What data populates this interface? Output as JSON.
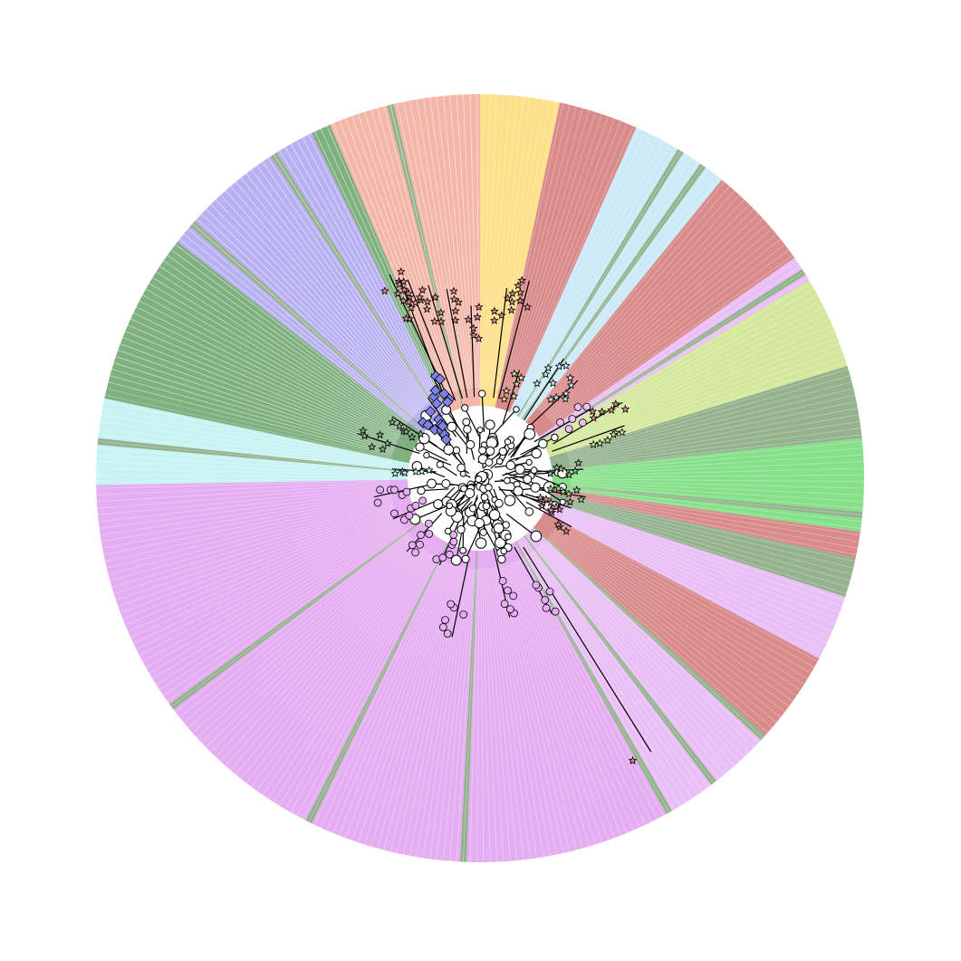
{
  "figure": {
    "kind": "radial phylogenetic tree with colored clade sectors",
    "center_fill": "#ffffff",
    "colors": {
      "salmon": "#f4b6a8",
      "yellow": "#fde08a",
      "darkred": "#d98a8a",
      "lightblue": "#cbe9f7",
      "lavender": "#e9bff5",
      "lime": "#d4e89d",
      "grayolive": "#93b28d",
      "green": "#86e08a",
      "pink": "#e6aef2",
      "violet": "#b9b0f2",
      "teal": "#c8f3f3",
      "forest": "#7fb07f"
    },
    "sectors": [
      {
        "color": "salmon",
        "start_deg": -76,
        "end_deg": -21
      },
      {
        "color": "grayolive",
        "start_deg": -21,
        "end_deg": -20
      },
      {
        "color": "yellow",
        "start_deg": -20,
        "end_deg": -18
      },
      {
        "color": "grayolive",
        "start_deg": -18,
        "end_deg": -17
      },
      {
        "color": "yellow",
        "start_deg": -17,
        "end_deg": 12
      },
      {
        "color": "darkred",
        "start_deg": 12,
        "end_deg": 24
      },
      {
        "color": "lightblue",
        "start_deg": 24,
        "end_deg": 31
      },
      {
        "color": "grayolive",
        "start_deg": 31,
        "end_deg": 32
      },
      {
        "color": "lightblue",
        "start_deg": 32,
        "end_deg": 35
      },
      {
        "color": "grayolive",
        "start_deg": 35,
        "end_deg": 36
      },
      {
        "color": "lightblue",
        "start_deg": 36,
        "end_deg": 39
      },
      {
        "color": "darkred",
        "start_deg": 39,
        "end_deg": 55
      },
      {
        "color": "lavender",
        "start_deg": 55,
        "end_deg": 57
      },
      {
        "color": "grayolive",
        "start_deg": 57,
        "end_deg": 58
      },
      {
        "color": "lavender",
        "start_deg": 58,
        "end_deg": 59
      },
      {
        "color": "lime",
        "start_deg": 59,
        "end_deg": 73
      },
      {
        "color": "grayolive",
        "start_deg": 73,
        "end_deg": 84
      },
      {
        "color": "green",
        "start_deg": 84,
        "end_deg": 95
      },
      {
        "color": "grayolive",
        "start_deg": 95,
        "end_deg": 96
      },
      {
        "color": "green",
        "start_deg": 96,
        "end_deg": 98
      },
      {
        "color": "darkred",
        "start_deg": 98,
        "end_deg": 102
      },
      {
        "color": "grayolive",
        "start_deg": 102,
        "end_deg": 108
      },
      {
        "color": "lavender",
        "start_deg": 108,
        "end_deg": 118
      },
      {
        "color": "darkred",
        "start_deg": 118,
        "end_deg": 132
      },
      {
        "color": "grayolive",
        "start_deg": 132,
        "end_deg": 133
      },
      {
        "color": "lavender",
        "start_deg": 133,
        "end_deg": 142
      },
      {
        "color": "grayolive",
        "start_deg": 142,
        "end_deg": 143
      },
      {
        "color": "lavender",
        "start_deg": 143,
        "end_deg": 150
      },
      {
        "color": "grayolive",
        "start_deg": 150,
        "end_deg": 151
      },
      {
        "color": "pink",
        "start_deg": 151,
        "end_deg": 182
      },
      {
        "color": "grayolive",
        "start_deg": 182,
        "end_deg": 183
      },
      {
        "color": "pink",
        "start_deg": 183,
        "end_deg": 206
      },
      {
        "color": "grayolive",
        "start_deg": 206,
        "end_deg": 207
      },
      {
        "color": "pink",
        "start_deg": 207,
        "end_deg": 233
      },
      {
        "color": "grayolive",
        "start_deg": 233,
        "end_deg": 234
      },
      {
        "color": "pink",
        "start_deg": 234,
        "end_deg": 269
      },
      {
        "color": "teal",
        "start_deg": 269,
        "end_deg": 275
      },
      {
        "color": "grayolive",
        "start_deg": 275,
        "end_deg": 276
      },
      {
        "color": "teal",
        "start_deg": 276,
        "end_deg": 282
      },
      {
        "color": "forest",
        "start_deg": 282,
        "end_deg": 308
      },
      {
        "color": "violet",
        "start_deg": 308,
        "end_deg": 311
      },
      {
        "color": "grayolive",
        "start_deg": 311,
        "end_deg": 312
      },
      {
        "color": "violet",
        "start_deg": 312,
        "end_deg": 327
      },
      {
        "color": "grayolive",
        "start_deg": 327,
        "end_deg": 328
      },
      {
        "color": "violet",
        "start_deg": 328,
        "end_deg": 334
      },
      {
        "color": "forest",
        "start_deg": 334,
        "end_deg": 337
      },
      {
        "color": "salmon",
        "start_deg": 337,
        "end_deg": 346
      },
      {
        "color": "grayolive",
        "start_deg": 346,
        "end_deg": 347
      },
      {
        "color": "salmon",
        "start_deg": 347,
        "end_deg": 360
      }
    ],
    "leaves": [
      {
        "angle": -24,
        "r": 0.58,
        "shape": "star",
        "color": "#d98a8a"
      },
      {
        "angle": -20,
        "r": 0.55,
        "shape": "star",
        "color": "#d98a8a"
      },
      {
        "angle": -3,
        "r": 0.45,
        "shape": "star",
        "color": "#d98a8a"
      },
      {
        "angle": 8,
        "r": 0.5,
        "shape": "star",
        "color": "#d98a8a"
      },
      {
        "angle": 14,
        "r": 0.53,
        "shape": "star",
        "color": "#d98a8a"
      },
      {
        "angle": 338,
        "r": 0.55,
        "shape": "star",
        "color": "#d98a8a"
      },
      {
        "angle": 345,
        "r": 0.52,
        "shape": "star",
        "color": "#d98a8a"
      },
      {
        "angle": 350,
        "r": 0.5,
        "shape": "star",
        "color": "#d98a8a"
      },
      {
        "angle": 20,
        "r": 0.3,
        "shape": "star",
        "color": "#d4e89d"
      },
      {
        "angle": 35,
        "r": 0.38,
        "shape": "star",
        "color": "#cbe9f7"
      },
      {
        "angle": 45,
        "r": 0.36,
        "shape": "star",
        "color": "#cbe9f7"
      },
      {
        "angle": 58,
        "r": 0.34,
        "shape": "circle",
        "color": "#e9bff5"
      },
      {
        "angle": 62,
        "r": 0.42,
        "shape": "star",
        "color": "#d98a8a"
      },
      {
        "angle": 70,
        "r": 0.4,
        "shape": "star",
        "color": "#d4e89d"
      },
      {
        "angle": 85,
        "r": 0.27,
        "shape": "star",
        "color": "#93b28d"
      },
      {
        "angle": 100,
        "r": 0.28,
        "shape": "star",
        "color": "#86e08a"
      },
      {
        "angle": 108,
        "r": 0.25,
        "shape": "star",
        "color": "#d98a8a"
      },
      {
        "angle": 118,
        "r": 0.27,
        "shape": "star",
        "color": "#d98a8a"
      },
      {
        "angle": 148,
        "r": 0.84,
        "shape": "star",
        "color": "#d98a8a"
      },
      {
        "angle": 152,
        "r": 0.4,
        "shape": "circle",
        "color": "#e6aef2"
      },
      {
        "angle": 168,
        "r": 0.37,
        "shape": "circle",
        "color": "#e6aef2"
      },
      {
        "angle": 190,
        "r": 0.42,
        "shape": "circle",
        "color": "#e6aef2"
      },
      {
        "angle": 205,
        "r": 0.25,
        "shape": "circle",
        "color": "#e6aef2"
      },
      {
        "angle": 225,
        "r": 0.27,
        "shape": "circle",
        "color": "#e6aef2"
      },
      {
        "angle": 245,
        "r": 0.25,
        "shape": "circle",
        "color": "#e6aef2"
      },
      {
        "angle": 260,
        "r": 0.28,
        "shape": "circle",
        "color": "#e6aef2"
      },
      {
        "angle": 276,
        "r": 0.23,
        "shape": "star",
        "color": "#c8f3f3"
      },
      {
        "angle": 290,
        "r": 0.34,
        "shape": "star",
        "color": "#7fb07f"
      },
      {
        "angle": 305,
        "r": 0.28,
        "shape": "star",
        "color": "#7fb07f"
      },
      {
        "angle": 318,
        "r": 0.22,
        "shape": "diamond",
        "color": "#8080e8"
      },
      {
        "angle": 327,
        "r": 0.25,
        "shape": "diamond",
        "color": "#8080e8"
      },
      {
        "angle": 335,
        "r": 0.3,
        "shape": "diamond",
        "color": "#8080e8"
      }
    ]
  }
}
